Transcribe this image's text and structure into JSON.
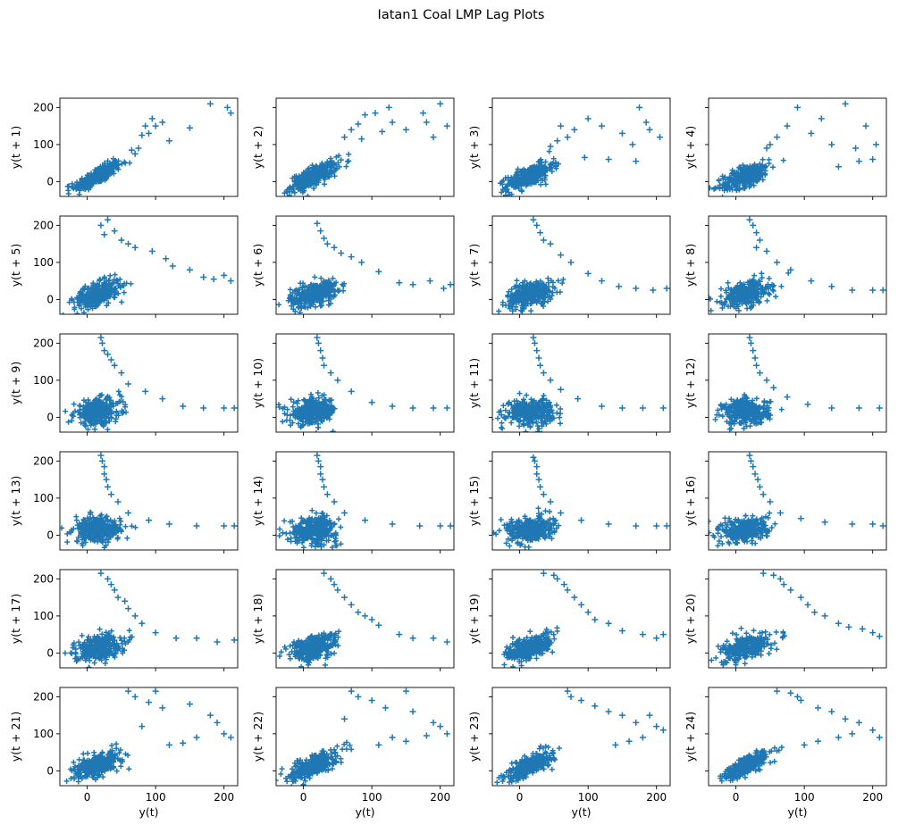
{
  "chart_data": {
    "type": "scatter",
    "title": "Iatan1 Coal LMP Lag Plots",
    "marker": "+",
    "color": "#1f77b4",
    "layout": {
      "rows": 6,
      "cols": 4,
      "sharex": true,
      "sharey": true
    },
    "xlim": [
      -40,
      220
    ],
    "ylim": [
      -40,
      225
    ],
    "xticks": [
      0,
      100,
      200
    ],
    "yticks": [
      0,
      100,
      200
    ],
    "xlabel": "y(t)",
    "subplots": [
      {
        "lag": 1,
        "ylabel": "y(t + 1)"
      },
      {
        "lag": 2,
        "ylabel": "y(t + 2)"
      },
      {
        "lag": 3,
        "ylabel": "y(t + 3)"
      },
      {
        "lag": 4,
        "ylabel": "y(t + 4)"
      },
      {
        "lag": 5,
        "ylabel": "y(t + 5)"
      },
      {
        "lag": 6,
        "ylabel": "y(t + 6)"
      },
      {
        "lag": 7,
        "ylabel": "y(t + 7)"
      },
      {
        "lag": 8,
        "ylabel": "y(t + 8)"
      },
      {
        "lag": 9,
        "ylabel": "y(t + 9)"
      },
      {
        "lag": 10,
        "ylabel": "y(t + 10)"
      },
      {
        "lag": 11,
        "ylabel": "y(t + 11)"
      },
      {
        "lag": 12,
        "ylabel": "y(t + 12)"
      },
      {
        "lag": 13,
        "ylabel": "y(t + 13)"
      },
      {
        "lag": 14,
        "ylabel": "y(t + 14)"
      },
      {
        "lag": 15,
        "ylabel": "y(t + 15)"
      },
      {
        "lag": 16,
        "ylabel": "y(t + 16)"
      },
      {
        "lag": 17,
        "ylabel": "y(t + 17)"
      },
      {
        "lag": 18,
        "ylabel": "y(t + 18)"
      },
      {
        "lag": 19,
        "ylabel": "y(t + 19)"
      },
      {
        "lag": 20,
        "ylabel": "y(t + 20)"
      },
      {
        "lag": 21,
        "ylabel": "y(t + 21)"
      },
      {
        "lag": 22,
        "ylabel": "y(t + 22)"
      },
      {
        "lag": 23,
        "ylabel": "y(t + 23)"
      },
      {
        "lag": 24,
        "ylabel": "y(t + 24)"
      }
    ],
    "outliers": [
      [
        [
          180,
          210
        ],
        [
          205,
          200
        ],
        [
          210,
          185
        ],
        [
          150,
          145
        ],
        [
          120,
          110
        ],
        [
          110,
          160
        ],
        [
          100,
          150
        ],
        [
          95,
          170
        ],
        [
          85,
          150
        ],
        [
          75,
          90
        ],
        [
          70,
          75
        ],
        [
          65,
          85
        ],
        [
          80,
          125
        ],
        [
          90,
          130
        ]
      ],
      [
        [
          200,
          210
        ],
        [
          175,
          185
        ],
        [
          180,
          160
        ],
        [
          190,
          120
        ],
        [
          210,
          150
        ],
        [
          150,
          140
        ],
        [
          130,
          160
        ],
        [
          125,
          200
        ],
        [
          105,
          185
        ],
        [
          90,
          180
        ],
        [
          80,
          155
        ],
        [
          70,
          140
        ],
        [
          60,
          120
        ],
        [
          85,
          115
        ],
        [
          115,
          135
        ]
      ],
      [
        [
          175,
          200
        ],
        [
          185,
          160
        ],
        [
          205,
          120
        ],
        [
          190,
          140
        ],
        [
          165,
          100
        ],
        [
          150,
          130
        ],
        [
          120,
          150
        ],
        [
          100,
          170
        ],
        [
          80,
          140
        ],
        [
          70,
          120
        ],
        [
          60,
          150
        ],
        [
          55,
          110
        ],
        [
          45,
          95
        ],
        [
          95,
          65
        ],
        [
          130,
          60
        ],
        [
          170,
          55
        ]
      ],
      [
        [
          160,
          210
        ],
        [
          190,
          150
        ],
        [
          205,
          100
        ],
        [
          175,
          90
        ],
        [
          140,
          100
        ],
        [
          125,
          170
        ],
        [
          110,
          130
        ],
        [
          90,
          200
        ],
        [
          75,
          150
        ],
        [
          60,
          120
        ],
        [
          50,
          100
        ],
        [
          45,
          90
        ],
        [
          150,
          40
        ],
        [
          180,
          55
        ],
        [
          200,
          60
        ]
      ],
      [
        [
          20,
          200
        ],
        [
          25,
          175
        ],
        [
          30,
          215
        ],
        [
          40,
          185
        ],
        [
          50,
          160
        ],
        [
          60,
          150
        ],
        [
          70,
          140
        ],
        [
          95,
          130
        ],
        [
          115,
          110
        ],
        [
          125,
          90
        ],
        [
          150,
          80
        ],
        [
          170,
          60
        ],
        [
          185,
          55
        ],
        [
          200,
          65
        ],
        [
          210,
          50
        ]
      ],
      [
        [
          20,
          205
        ],
        [
          25,
          185
        ],
        [
          30,
          165
        ],
        [
          35,
          150
        ],
        [
          45,
          140
        ],
        [
          55,
          125
        ],
        [
          70,
          115
        ],
        [
          85,
          100
        ],
        [
          110,
          75
        ],
        [
          140,
          45
        ],
        [
          160,
          40
        ],
        [
          185,
          50
        ],
        [
          205,
          30
        ],
        [
          215,
          40
        ]
      ],
      [
        [
          20,
          215
        ],
        [
          25,
          200
        ],
        [
          30,
          180
        ],
        [
          35,
          160
        ],
        [
          45,
          150
        ],
        [
          60,
          120
        ],
        [
          75,
          100
        ],
        [
          100,
          70
        ],
        [
          120,
          50
        ],
        [
          145,
          35
        ],
        [
          170,
          30
        ],
        [
          195,
          25
        ],
        [
          215,
          30
        ]
      ],
      [
        [
          20,
          215
        ],
        [
          25,
          200
        ],
        [
          30,
          180
        ],
        [
          35,
          160
        ],
        [
          30,
          140
        ],
        [
          45,
          130
        ],
        [
          60,
          100
        ],
        [
          80,
          80
        ],
        [
          110,
          50
        ],
        [
          140,
          35
        ],
        [
          170,
          25
        ],
        [
          200,
          25
        ],
        [
          215,
          25
        ]
      ],
      [
        [
          20,
          215
        ],
        [
          22,
          200
        ],
        [
          25,
          180
        ],
        [
          30,
          170
        ],
        [
          35,
          155
        ],
        [
          40,
          140
        ],
        [
          50,
          120
        ],
        [
          60,
          90
        ],
        [
          85,
          70
        ],
        [
          110,
          50
        ],
        [
          140,
          30
        ],
        [
          170,
          25
        ],
        [
          200,
          25
        ],
        [
          215,
          25
        ]
      ],
      [
        [
          20,
          215
        ],
        [
          22,
          200
        ],
        [
          25,
          180
        ],
        [
          28,
          160
        ],
        [
          30,
          140
        ],
        [
          40,
          120
        ],
        [
          50,
          100
        ],
        [
          70,
          70
        ],
        [
          100,
          40
        ],
        [
          130,
          30
        ],
        [
          160,
          25
        ],
        [
          190,
          25
        ],
        [
          210,
          25
        ]
      ],
      [
        [
          20,
          215
        ],
        [
          22,
          200
        ],
        [
          25,
          180
        ],
        [
          28,
          160
        ],
        [
          30,
          140
        ],
        [
          35,
          120
        ],
        [
          45,
          100
        ],
        [
          60,
          75
        ],
        [
          85,
          50
        ],
        [
          120,
          30
        ],
        [
          150,
          25
        ],
        [
          180,
          25
        ],
        [
          210,
          25
        ]
      ],
      [
        [
          20,
          215
        ],
        [
          22,
          200
        ],
        [
          25,
          180
        ],
        [
          28,
          160
        ],
        [
          30,
          140
        ],
        [
          35,
          120
        ],
        [
          45,
          100
        ],
        [
          55,
          80
        ],
        [
          75,
          55
        ],
        [
          105,
          35
        ],
        [
          140,
          25
        ],
        [
          180,
          25
        ],
        [
          210,
          25
        ]
      ],
      [
        [
          20,
          215
        ],
        [
          22,
          200
        ],
        [
          25,
          185
        ],
        [
          25,
          165
        ],
        [
          28,
          150
        ],
        [
          30,
          130
        ],
        [
          35,
          110
        ],
        [
          45,
          90
        ],
        [
          60,
          60
        ],
        [
          90,
          40
        ],
        [
          120,
          30
        ],
        [
          160,
          25
        ],
        [
          200,
          25
        ],
        [
          215,
          25
        ]
      ],
      [
        [
          20,
          215
        ],
        [
          22,
          200
        ],
        [
          25,
          185
        ],
        [
          25,
          165
        ],
        [
          28,
          150
        ],
        [
          30,
          130
        ],
        [
          35,
          110
        ],
        [
          45,
          90
        ],
        [
          60,
          60
        ],
        [
          90,
          40
        ],
        [
          130,
          30
        ],
        [
          170,
          25
        ],
        [
          200,
          25
        ],
        [
          215,
          25
        ]
      ],
      [
        [
          20,
          210
        ],
        [
          22,
          200
        ],
        [
          25,
          185
        ],
        [
          25,
          165
        ],
        [
          28,
          150
        ],
        [
          30,
          130
        ],
        [
          35,
          110
        ],
        [
          45,
          90
        ],
        [
          60,
          60
        ],
        [
          90,
          40
        ],
        [
          130,
          30
        ],
        [
          170,
          25
        ],
        [
          200,
          25
        ],
        [
          215,
          25
        ]
      ],
      [
        [
          20,
          215
        ],
        [
          22,
          200
        ],
        [
          25,
          185
        ],
        [
          28,
          165
        ],
        [
          32,
          150
        ],
        [
          35,
          130
        ],
        [
          40,
          110
        ],
        [
          50,
          90
        ],
        [
          65,
          60
        ],
        [
          95,
          45
        ],
        [
          130,
          35
        ],
        [
          170,
          30
        ],
        [
          200,
          30
        ],
        [
          215,
          25
        ]
      ],
      [
        [
          20,
          215
        ],
        [
          30,
          200
        ],
        [
          35,
          185
        ],
        [
          40,
          170
        ],
        [
          45,
          150
        ],
        [
          55,
          140
        ],
        [
          60,
          120
        ],
        [
          70,
          100
        ],
        [
          80,
          80
        ],
        [
          100,
          55
        ],
        [
          130,
          40
        ],
        [
          160,
          40
        ],
        [
          190,
          30
        ],
        [
          215,
          35
        ]
      ],
      [
        [
          30,
          215
        ],
        [
          40,
          200
        ],
        [
          45,
          185
        ],
        [
          50,
          170
        ],
        [
          60,
          150
        ],
        [
          70,
          130
        ],
        [
          80,
          110
        ],
        [
          90,
          100
        ],
        [
          100,
          90
        ],
        [
          110,
          75
        ],
        [
          140,
          50
        ],
        [
          160,
          40
        ],
        [
          190,
          40
        ],
        [
          210,
          30
        ]
      ],
      [
        [
          35,
          215
        ],
        [
          50,
          210
        ],
        [
          55,
          200
        ],
        [
          65,
          185
        ],
        [
          70,
          170
        ],
        [
          80,
          150
        ],
        [
          90,
          130
        ],
        [
          100,
          110
        ],
        [
          110,
          90
        ],
        [
          130,
          80
        ],
        [
          150,
          60
        ],
        [
          180,
          50
        ],
        [
          200,
          40
        ],
        [
          210,
          50
        ]
      ],
      [
        [
          40,
          215
        ],
        [
          55,
          210
        ],
        [
          65,
          200
        ],
        [
          70,
          185
        ],
        [
          80,
          170
        ],
        [
          95,
          150
        ],
        [
          105,
          130
        ],
        [
          115,
          110
        ],
        [
          130,
          100
        ],
        [
          150,
          80
        ],
        [
          165,
          70
        ],
        [
          185,
          65
        ],
        [
          200,
          55
        ],
        [
          210,
          45
        ]
      ],
      [
        [
          60,
          215
        ],
        [
          100,
          215
        ],
        [
          70,
          200
        ],
        [
          90,
          185
        ],
        [
          110,
          170
        ],
        [
          150,
          180
        ],
        [
          180,
          150
        ],
        [
          190,
          130
        ],
        [
          200,
          100
        ],
        [
          210,
          90
        ],
        [
          160,
          90
        ],
        [
          140,
          75
        ],
        [
          120,
          70
        ],
        [
          80,
          120
        ]
      ],
      [
        [
          70,
          215
        ],
        [
          150,
          215
        ],
        [
          80,
          200
        ],
        [
          100,
          190
        ],
        [
          120,
          170
        ],
        [
          160,
          160
        ],
        [
          190,
          130
        ],
        [
          200,
          120
        ],
        [
          210,
          100
        ],
        [
          180,
          95
        ],
        [
          150,
          80
        ],
        [
          130,
          90
        ],
        [
          110,
          70
        ],
        [
          60,
          140
        ]
      ],
      [
        [
          70,
          215
        ],
        [
          75,
          200
        ],
        [
          90,
          190
        ],
        [
          110,
          175
        ],
        [
          130,
          160
        ],
        [
          150,
          150
        ],
        [
          170,
          130
        ],
        [
          190,
          150
        ],
        [
          200,
          120
        ],
        [
          210,
          110
        ],
        [
          180,
          90
        ],
        [
          160,
          80
        ],
        [
          140,
          70
        ]
      ],
      [
        [
          60,
          215
        ],
        [
          80,
          210
        ],
        [
          90,
          200
        ],
        [
          95,
          190
        ],
        [
          120,
          170
        ],
        [
          140,
          160
        ],
        [
          160,
          140
        ],
        [
          180,
          130
        ],
        [
          200,
          110
        ],
        [
          210,
          90
        ],
        [
          170,
          100
        ],
        [
          150,
          90
        ],
        [
          120,
          80
        ],
        [
          100,
          70
        ]
      ]
    ]
  }
}
